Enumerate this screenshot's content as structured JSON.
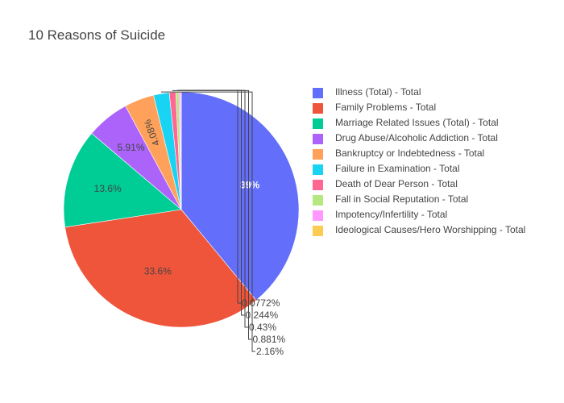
{
  "chart_data": {
    "type": "pie",
    "title": "10 Reasons of Suicide",
    "categories": [
      "Illness (Total) - Total",
      "Family Problems - Total",
      "Marriage Related Issues (Total) - Total",
      "Drug Abuse/Alcoholic Addiction - Total",
      "Bankruptcy or Indebtedness - Total",
      "Failure in Examination - Total",
      "Death of Dear Person - Total",
      "Fall in Social Reputation - Total",
      "Impotency/Infertility - Total",
      "Ideological Causes/Hero Worshipping - Total"
    ],
    "values": [
      39.0,
      33.6,
      13.6,
      5.91,
      4.08,
      2.16,
      0.881,
      0.43,
      0.244,
      0.0772
    ],
    "labels": [
      "39%",
      "33.6%",
      "13.6%",
      "5.91%",
      "4.08%",
      "2.16%",
      "0.881%",
      "0.43%",
      "0.244%",
      "0.0772%"
    ],
    "colors": [
      "#636efa",
      "#ef553b",
      "#00cc96",
      "#ab63fa",
      "#ffa15a",
      "#19d3f3",
      "#ff6692",
      "#b6e880",
      "#ff97ff",
      "#fecb52"
    ],
    "legend_position": "right",
    "sort": "descending",
    "direction": "clockwise",
    "start_angle": "top"
  }
}
